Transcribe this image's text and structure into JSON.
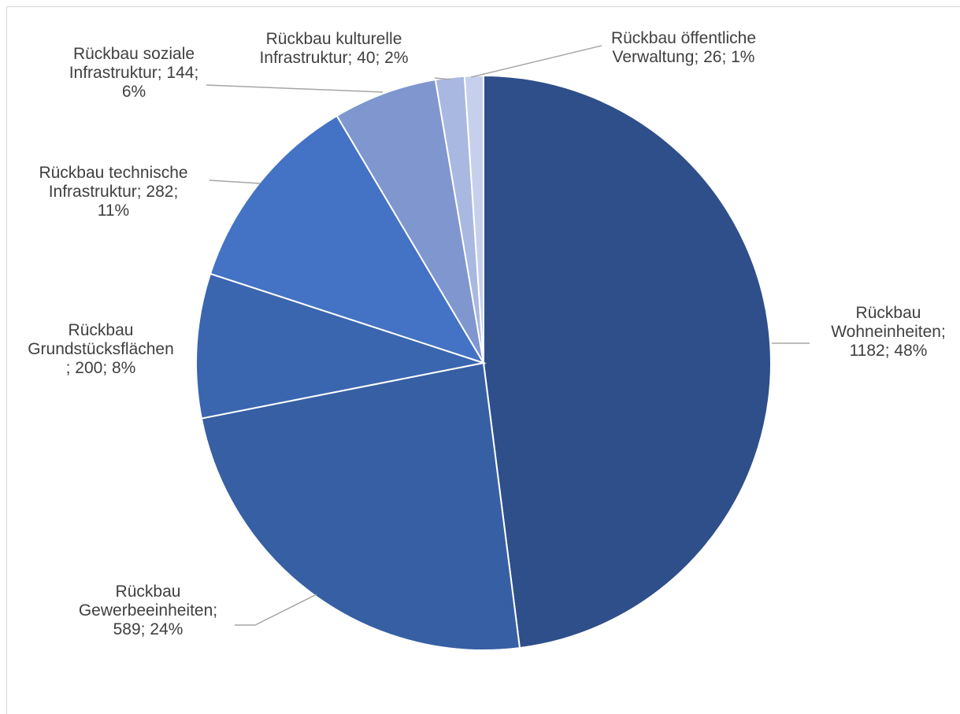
{
  "chart_data": {
    "type": "pie",
    "title": "",
    "legend": "none",
    "colors": [
      "#2f4f8a",
      "#375fa3",
      "#3a66b0",
      "#4472c4",
      "#7f96cf",
      "#a9b8e0",
      "#c6d0ec"
    ],
    "slices": [
      {
        "label": "Rückbau Wohneinheiten",
        "value": 1182,
        "percent": "48%",
        "label_lines": [
          "Rückbau",
          "Wohneinheiten;",
          "1182; 48%"
        ]
      },
      {
        "label": "Rückbau Gewerbeeinheiten",
        "value": 589,
        "percent": "24%",
        "label_lines": [
          "Rückbau",
          "Gewerbeeinheiten;",
          "589; 24%"
        ]
      },
      {
        "label": "Rückbau Grundstücksflächen",
        "value": 200,
        "percent": "8%",
        "label_lines": [
          "Rückbau",
          "Grundstücksflächen",
          "; 200; 8%"
        ]
      },
      {
        "label": "Rückbau technische Infrastruktur",
        "value": 282,
        "percent": "11%",
        "label_lines": [
          "Rückbau technische",
          "Infrastruktur; 282;",
          "11%"
        ]
      },
      {
        "label": "Rückbau soziale Infrastruktur",
        "value": 144,
        "percent": "6%",
        "label_lines": [
          "Rückbau soziale",
          "Infrastruktur; 144;",
          "6%"
        ]
      },
      {
        "label": "Rückbau kulturelle Infrastruktur",
        "value": 40,
        "percent": "2%",
        "label_lines": [
          "Rückbau kulturelle",
          "Infrastruktur; 40; 2%"
        ]
      },
      {
        "label": "Rückbau öffentliche Verwaltung",
        "value": 26,
        "percent": "1%",
        "label_lines": [
          "Rückbau öffentliche",
          "Verwaltung; 26; 1%"
        ]
      }
    ]
  }
}
